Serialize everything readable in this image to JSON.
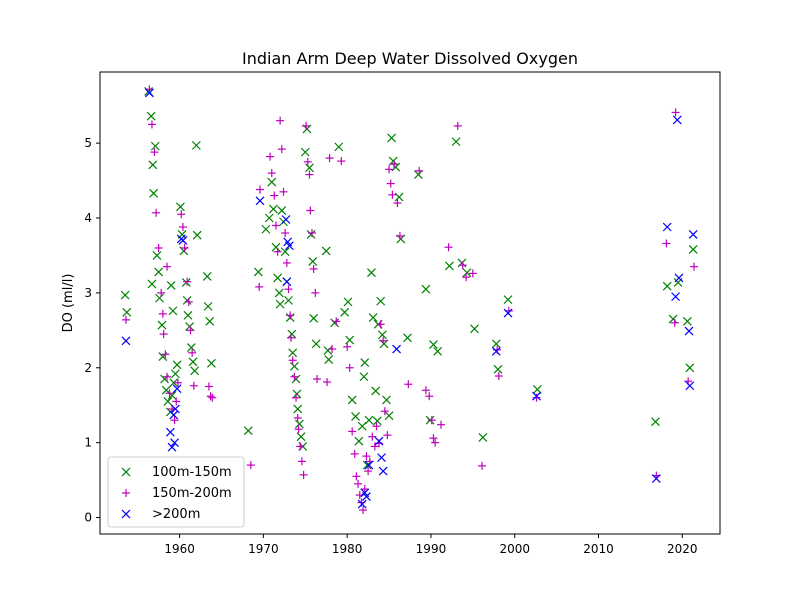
{
  "chart_data": {
    "type": "scatter",
    "title": "Indian Arm Deep Water Dissolved Oxygen",
    "xlabel": "",
    "ylabel": "DO (ml/l)",
    "xlim": [
      1950.5,
      2024.5
    ],
    "ylim": [
      -0.22,
      5.95
    ],
    "xticks": [
      1960,
      1970,
      1980,
      1990,
      2000,
      2010,
      2020
    ],
    "xtick_labels": [
      "1960",
      "1970",
      "1980",
      "1990",
      "2000",
      "2010",
      "2020"
    ],
    "yticks": [
      0,
      1,
      2,
      3,
      4,
      5
    ],
    "ytick_labels": [
      "0",
      "1",
      "2",
      "3",
      "4",
      "5"
    ],
    "grid": false,
    "legend_position": "lower-left",
    "series": [
      {
        "name": "100m-150m",
        "marker": "x",
        "color": "#008000",
        "points": [
          [
            1953.5,
            2.97
          ],
          [
            1953.7,
            2.74
          ],
          [
            1956.3,
            5.69
          ],
          [
            1956.6,
            5.36
          ],
          [
            1956.8,
            4.71
          ],
          [
            1956.9,
            4.33
          ],
          [
            1957.1,
            4.96
          ],
          [
            1956.7,
            3.12
          ],
          [
            1957.3,
            3.5
          ],
          [
            1957.5,
            3.28
          ],
          [
            1957.6,
            2.93
          ],
          [
            1957.9,
            2.57
          ],
          [
            1958.0,
            2.15
          ],
          [
            1958.2,
            1.85
          ],
          [
            1958.4,
            1.7
          ],
          [
            1958.6,
            1.55
          ],
          [
            1958.9,
            1.41
          ],
          [
            1959.1,
            1.63
          ],
          [
            1959.3,
            1.8
          ],
          [
            1959.5,
            1.92
          ],
          [
            1959.7,
            2.04
          ],
          [
            1959.2,
            2.76
          ],
          [
            1959.0,
            3.1
          ],
          [
            1960.1,
            4.15
          ],
          [
            1960.3,
            3.78
          ],
          [
            1960.5,
            3.56
          ],
          [
            1960.8,
            3.14
          ],
          [
            1960.9,
            2.9
          ],
          [
            1961.0,
            2.7
          ],
          [
            1961.2,
            2.55
          ],
          [
            1961.4,
            2.27
          ],
          [
            1961.6,
            2.08
          ],
          [
            1961.8,
            1.96
          ],
          [
            1962.0,
            4.97
          ],
          [
            1962.1,
            3.77
          ],
          [
            1963.3,
            3.22
          ],
          [
            1963.4,
            2.82
          ],
          [
            1963.6,
            2.62
          ],
          [
            1963.8,
            2.06
          ],
          [
            1968.2,
            1.16
          ],
          [
            1969.4,
            3.28
          ],
          [
            1970.3,
            3.85
          ],
          [
            1970.7,
            4.0
          ],
          [
            1971.0,
            4.48
          ],
          [
            1971.2,
            4.12
          ],
          [
            1971.5,
            3.61
          ],
          [
            1971.7,
            3.2
          ],
          [
            1971.9,
            3.0
          ],
          [
            1972.0,
            2.85
          ],
          [
            1972.2,
            4.1
          ],
          [
            1972.4,
            3.95
          ],
          [
            1972.6,
            3.55
          ],
          [
            1972.8,
            3.15
          ],
          [
            1973.0,
            2.9
          ],
          [
            1973.2,
            2.67
          ],
          [
            1973.4,
            2.45
          ],
          [
            1973.5,
            2.2
          ],
          [
            1973.7,
            2.02
          ],
          [
            1973.9,
            1.85
          ],
          [
            1974.0,
            1.65
          ],
          [
            1974.1,
            1.45
          ],
          [
            1974.3,
            1.25
          ],
          [
            1974.5,
            1.08
          ],
          [
            1974.7,
            0.95
          ],
          [
            1975.0,
            4.88
          ],
          [
            1975.2,
            5.19
          ],
          [
            1975.5,
            4.67
          ],
          [
            1975.7,
            3.78
          ],
          [
            1975.9,
            3.42
          ],
          [
            1976.0,
            2.66
          ],
          [
            1976.3,
            2.32
          ],
          [
            1977.5,
            3.56
          ],
          [
            1977.7,
            2.23
          ],
          [
            1977.8,
            2.11
          ],
          [
            1978.5,
            2.6
          ],
          [
            1979.0,
            4.95
          ],
          [
            1979.7,
            2.74
          ],
          [
            1980.1,
            2.88
          ],
          [
            1980.3,
            2.37
          ],
          [
            1980.6,
            1.57
          ],
          [
            1981.0,
            1.35
          ],
          [
            1981.4,
            1.02
          ],
          [
            1981.8,
            1.22
          ],
          [
            1982.0,
            1.88
          ],
          [
            1982.1,
            2.07
          ],
          [
            1982.4,
            0.7
          ],
          [
            1982.6,
            1.3
          ],
          [
            1982.9,
            3.27
          ],
          [
            1983.1,
            2.67
          ],
          [
            1983.4,
            1.69
          ],
          [
            1983.6,
            1.29
          ],
          [
            1983.7,
            2.58
          ],
          [
            1984.0,
            2.89
          ],
          [
            1984.2,
            2.44
          ],
          [
            1984.4,
            2.32
          ],
          [
            1984.7,
            1.57
          ],
          [
            1985.0,
            1.36
          ],
          [
            1985.3,
            5.07
          ],
          [
            1985.5,
            4.76
          ],
          [
            1985.8,
            4.68
          ],
          [
            1986.2,
            4.28
          ],
          [
            1986.4,
            3.72
          ],
          [
            1987.2,
            2.4
          ],
          [
            1988.5,
            4.58
          ],
          [
            1989.4,
            3.05
          ],
          [
            1989.9,
            1.3
          ],
          [
            1990.3,
            2.31
          ],
          [
            1990.8,
            2.22
          ],
          [
            1992.2,
            3.36
          ],
          [
            1993.0,
            5.02
          ],
          [
            1993.7,
            3.4
          ],
          [
            1994.3,
            3.27
          ],
          [
            1995.2,
            2.52
          ],
          [
            1996.2,
            1.07
          ],
          [
            1997.8,
            2.32
          ],
          [
            1998.0,
            1.98
          ],
          [
            1999.2,
            2.91
          ],
          [
            2002.7,
            1.71
          ],
          [
            2016.8,
            1.28
          ],
          [
            2018.2,
            3.09
          ],
          [
            2018.9,
            2.65
          ],
          [
            2019.5,
            3.14
          ],
          [
            2020.6,
            2.62
          ],
          [
            2020.9,
            2.0
          ],
          [
            2021.3,
            3.58
          ]
        ]
      },
      {
        "name": "150m-200m",
        "marker": "+",
        "color": "#bf00bf",
        "points": [
          [
            1953.6,
            2.64
          ],
          [
            1956.4,
            5.72
          ],
          [
            1956.7,
            5.25
          ],
          [
            1957.0,
            4.88
          ],
          [
            1957.2,
            4.07
          ],
          [
            1957.5,
            3.6
          ],
          [
            1957.8,
            3.0
          ],
          [
            1958.0,
            2.72
          ],
          [
            1958.1,
            2.45
          ],
          [
            1958.3,
            2.18
          ],
          [
            1958.5,
            1.88
          ],
          [
            1958.8,
            1.66
          ],
          [
            1959.1,
            1.45
          ],
          [
            1959.4,
            1.3
          ],
          [
            1959.6,
            1.55
          ],
          [
            1959.8,
            1.8
          ],
          [
            1958.5,
            3.35
          ],
          [
            1960.2,
            4.05
          ],
          [
            1960.4,
            3.88
          ],
          [
            1960.6,
            3.6
          ],
          [
            1960.9,
            3.15
          ],
          [
            1961.1,
            2.88
          ],
          [
            1961.3,
            2.5
          ],
          [
            1961.5,
            2.2
          ],
          [
            1961.7,
            1.76
          ],
          [
            1963.5,
            1.75
          ],
          [
            1963.7,
            1.62
          ],
          [
            1963.9,
            1.6
          ],
          [
            1968.5,
            0.7
          ],
          [
            1969.5,
            3.08
          ],
          [
            1969.6,
            4.38
          ],
          [
            1970.8,
            4.82
          ],
          [
            1971.0,
            4.6
          ],
          [
            1971.3,
            4.3
          ],
          [
            1971.5,
            3.9
          ],
          [
            1971.7,
            3.55
          ],
          [
            1972.0,
            5.3
          ],
          [
            1972.2,
            4.92
          ],
          [
            1972.4,
            4.35
          ],
          [
            1972.6,
            3.8
          ],
          [
            1972.8,
            3.4
          ],
          [
            1973.0,
            3.05
          ],
          [
            1973.2,
            2.7
          ],
          [
            1973.3,
            2.4
          ],
          [
            1973.5,
            2.1
          ],
          [
            1973.7,
            1.88
          ],
          [
            1973.9,
            1.6
          ],
          [
            1974.1,
            1.33
          ],
          [
            1974.2,
            1.18
          ],
          [
            1974.4,
            0.95
          ],
          [
            1974.6,
            0.75
          ],
          [
            1974.8,
            0.57
          ],
          [
            1975.1,
            5.23
          ],
          [
            1975.3,
            4.75
          ],
          [
            1975.5,
            4.58
          ],
          [
            1975.6,
            4.1
          ],
          [
            1975.8,
            3.8
          ],
          [
            1976.0,
            3.32
          ],
          [
            1976.2,
            3.0
          ],
          [
            1976.4,
            1.85
          ],
          [
            1977.6,
            1.81
          ],
          [
            1977.9,
            4.8
          ],
          [
            1978.2,
            2.25
          ],
          [
            1978.7,
            2.62
          ],
          [
            1979.3,
            4.76
          ],
          [
            1980.0,
            2.28
          ],
          [
            1980.3,
            2.0
          ],
          [
            1980.6,
            1.15
          ],
          [
            1980.9,
            0.85
          ],
          [
            1981.1,
            0.55
          ],
          [
            1981.3,
            0.45
          ],
          [
            1981.5,
            0.3
          ],
          [
            1981.7,
            0.2
          ],
          [
            1981.9,
            0.1
          ],
          [
            1982.1,
            0.38
          ],
          [
            1982.3,
            0.82
          ],
          [
            1982.5,
            0.62
          ],
          [
            1982.7,
            0.75
          ],
          [
            1983.0,
            1.08
          ],
          [
            1983.3,
            0.95
          ],
          [
            1983.5,
            1.22
          ],
          [
            1983.8,
            0.99
          ],
          [
            1984.0,
            2.58
          ],
          [
            1984.3,
            2.36
          ],
          [
            1984.5,
            1.42
          ],
          [
            1984.8,
            1.1
          ],
          [
            1985.0,
            4.65
          ],
          [
            1985.2,
            4.46
          ],
          [
            1985.4,
            4.31
          ],
          [
            1985.6,
            4.72
          ],
          [
            1986.0,
            4.2
          ],
          [
            1986.3,
            3.76
          ],
          [
            1987.3,
            1.78
          ],
          [
            1988.6,
            4.63
          ],
          [
            1989.4,
            1.7
          ],
          [
            1989.8,
            1.62
          ],
          [
            1990.1,
            1.3
          ],
          [
            1990.3,
            1.06
          ],
          [
            1990.5,
            1.0
          ],
          [
            1991.2,
            1.24
          ],
          [
            1992.1,
            3.61
          ],
          [
            1993.2,
            5.23
          ],
          [
            1993.8,
            3.37
          ],
          [
            1994.2,
            3.21
          ],
          [
            1995.0,
            3.26
          ],
          [
            1996.1,
            0.69
          ],
          [
            1997.9,
            2.24
          ],
          [
            1998.1,
            1.89
          ],
          [
            1999.3,
            2.76
          ],
          [
            2002.6,
            1.6
          ],
          [
            2016.9,
            0.56
          ],
          [
            2018.1,
            3.66
          ],
          [
            2019.1,
            2.6
          ],
          [
            2019.2,
            5.41
          ],
          [
            2020.7,
            1.82
          ],
          [
            2021.4,
            3.35
          ]
        ]
      },
      {
        "name": ">200m",
        "marker": "x",
        "color": "#0000ff",
        "points": [
          [
            1953.6,
            2.36
          ],
          [
            1956.4,
            5.67
          ],
          [
            1958.9,
            1.14
          ],
          [
            1959.1,
            0.94
          ],
          [
            1959.4,
            1.0
          ],
          [
            1959.3,
            1.37
          ],
          [
            1959.5,
            1.45
          ],
          [
            1959.7,
            1.72
          ],
          [
            1960.2,
            3.72
          ],
          [
            1960.4,
            3.7
          ],
          [
            1969.6,
            4.23
          ],
          [
            1972.7,
            3.98
          ],
          [
            1972.9,
            3.68
          ],
          [
            1973.1,
            3.63
          ],
          [
            1972.8,
            3.15
          ],
          [
            1981.8,
            0.18
          ],
          [
            1982.1,
            0.33
          ],
          [
            1982.3,
            0.28
          ],
          [
            1982.6,
            0.7
          ],
          [
            1983.8,
            1.02
          ],
          [
            1984.1,
            0.8
          ],
          [
            1984.3,
            0.62
          ],
          [
            1985.9,
            2.25
          ],
          [
            1997.8,
            2.22
          ],
          [
            1999.2,
            2.73
          ],
          [
            2002.6,
            1.62
          ],
          [
            2016.9,
            0.52
          ],
          [
            2018.2,
            3.88
          ],
          [
            2019.2,
            2.95
          ],
          [
            2019.4,
            5.31
          ],
          [
            2019.6,
            3.2
          ],
          [
            2020.8,
            2.49
          ],
          [
            2020.9,
            1.76
          ],
          [
            2021.3,
            3.78
          ]
        ]
      }
    ]
  }
}
